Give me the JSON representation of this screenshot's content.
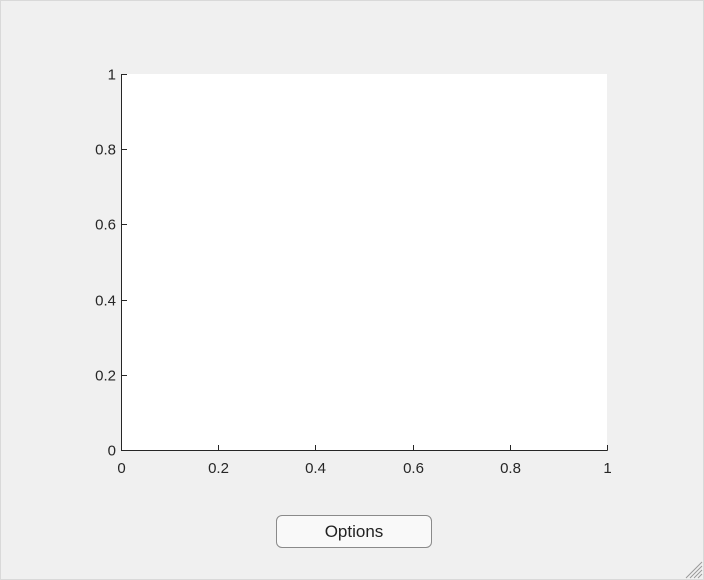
{
  "options_button": {
    "label": "Options"
  },
  "colors": {
    "background": "#f0f0f0",
    "plot_area": "#ffffff",
    "axis": "#262626"
  },
  "chart_data": {
    "type": "line",
    "series": [],
    "title": "",
    "xlabel": "",
    "ylabel": "",
    "xlim": [
      0,
      1
    ],
    "ylim": [
      0,
      1
    ],
    "xticks": [
      0,
      0.2,
      0.4,
      0.6,
      0.8,
      1
    ],
    "yticks": [
      0,
      0.2,
      0.4,
      0.6,
      0.8,
      1
    ],
    "xtick_labels": [
      "0",
      "0.2",
      "0.4",
      "0.6",
      "0.8",
      "1"
    ],
    "ytick_labels": [
      "0",
      "0.2",
      "0.4",
      "0.6",
      "0.8",
      "1"
    ],
    "grid": false,
    "legend": "none"
  }
}
